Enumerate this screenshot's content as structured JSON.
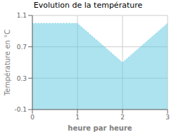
{
  "chart_data": {
    "type": "area",
    "title": "Evolution de la température",
    "xlabel": "heure par heure",
    "ylabel": "Température en °C",
    "x": [
      0,
      1,
      2,
      3
    ],
    "values": [
      1.0,
      1.0,
      0.5,
      1.0
    ],
    "xlim": [
      0,
      3
    ],
    "ylim": [
      -0.1,
      1.1
    ],
    "xticks": [
      0,
      1,
      2,
      3
    ],
    "yticks": [
      -0.1,
      0.3,
      0.7,
      1.1
    ],
    "grid": true,
    "color": "#5bc8e0",
    "line_style": "dotted"
  }
}
